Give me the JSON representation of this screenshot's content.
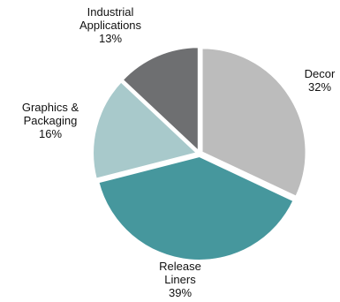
{
  "chart_data": {
    "type": "pie",
    "title": "",
    "start_angle_deg": 0,
    "direction": "clockwise",
    "slices": [
      {
        "label": [
          "Decor"
        ],
        "percent_label": "32%",
        "value": 32,
        "color": "#bcbcbc"
      },
      {
        "label": [
          "Release",
          "Liners"
        ],
        "percent_label": "39%",
        "value": 39,
        "color": "#46979d"
      },
      {
        "label": [
          "Graphics &",
          "Packaging"
        ],
        "percent_label": "16%",
        "value": 16,
        "color": "#a8c9cb"
      },
      {
        "label": [
          "Industrial",
          "Applications"
        ],
        "percent_label": "13%",
        "value": 13,
        "color": "#6e6f71"
      }
    ]
  }
}
